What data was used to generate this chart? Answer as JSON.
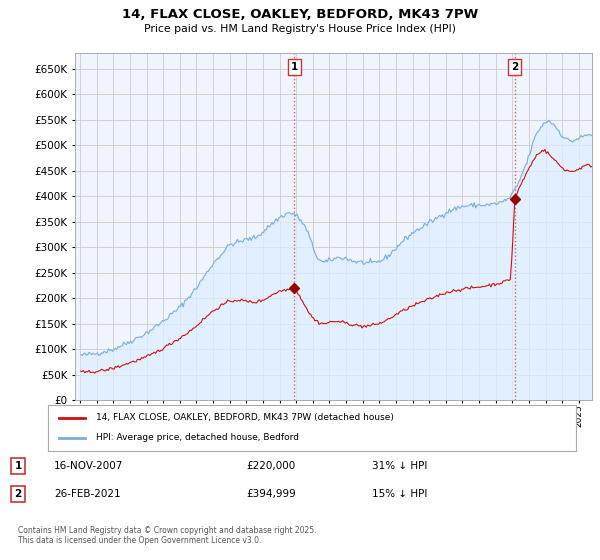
{
  "title": "14, FLAX CLOSE, OAKLEY, BEDFORD, MK43 7PW",
  "subtitle": "Price paid vs. HM Land Registry's House Price Index (HPI)",
  "background_color": "#ffffff",
  "grid_color": "#cccccc",
  "plot_bg": "#f0f4ff",
  "sale1_date": "16-NOV-2007",
  "sale1_price": 220000,
  "sale1_label": "31% ↓ HPI",
  "sale2_date": "26-FEB-2021",
  "sale2_price": 394999,
  "sale2_label": "15% ↓ HPI",
  "hpi_color": "#7aaddb",
  "hpi_fill_color": "#ddeeff",
  "price_color": "#cc1111",
  "sale_marker_color": "#990000",
  "vline_color": "#dd4444",
  "legend_label_price": "14, FLAX CLOSE, OAKLEY, BEDFORD, MK43 7PW (detached house)",
  "legend_label_hpi": "HPI: Average price, detached house, Bedford",
  "footnote": "Contains HM Land Registry data © Crown copyright and database right 2025.\nThis data is licensed under the Open Government Licence v3.0.",
  "ylim": [
    0,
    680000
  ],
  "yticks": [
    0,
    50000,
    100000,
    150000,
    200000,
    250000,
    300000,
    350000,
    400000,
    450000,
    500000,
    550000,
    600000,
    650000
  ],
  "sale1_x": 2007.88,
  "sale2_x": 2021.15,
  "xlim_left": 1994.7,
  "xlim_right": 2025.8
}
